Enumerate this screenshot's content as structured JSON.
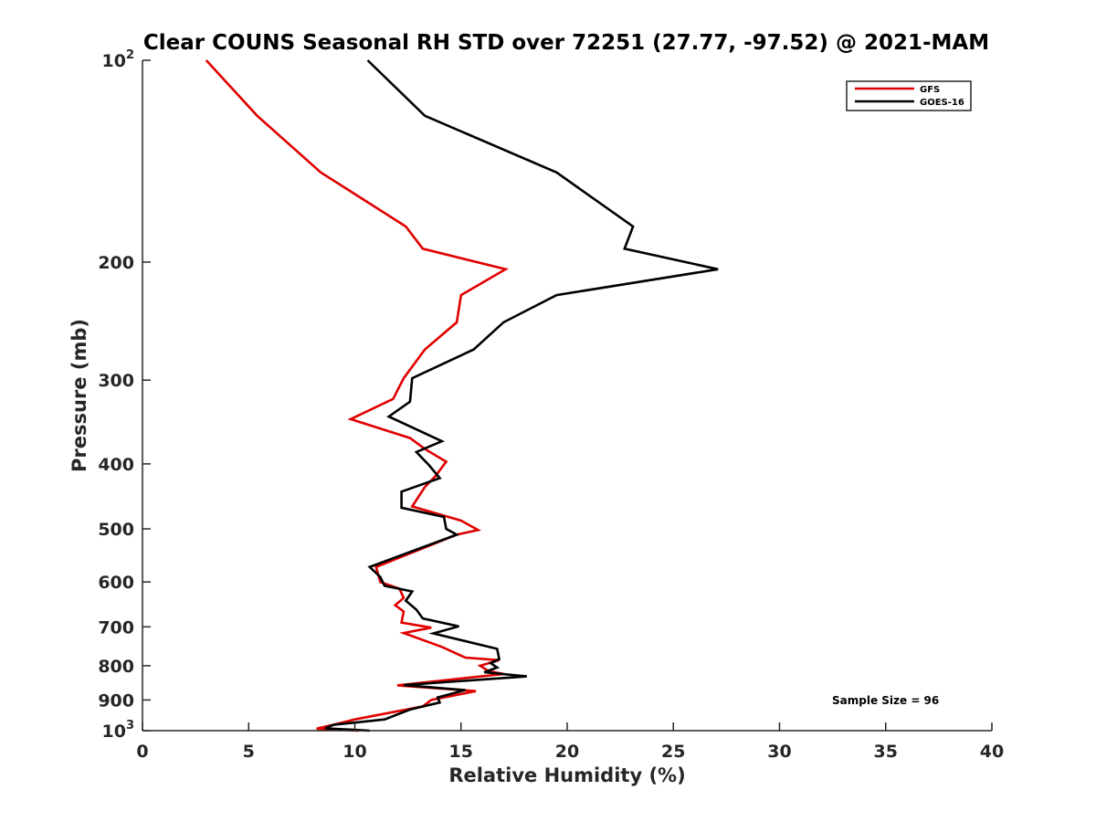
{
  "chart_data": {
    "type": "line",
    "title": "Clear COUNS Seasonal RH STD over 72251 (27.77, -97.52) @ 2021-MAM",
    "xlabel": "Relative Humidity (%)",
    "ylabel": "Pressure (mb)",
    "xlim": [
      0,
      40
    ],
    "ylim": [
      100,
      1000
    ],
    "yscale": "log",
    "xticks": [
      0,
      5,
      10,
      15,
      20,
      25,
      30,
      35,
      40
    ],
    "yticks": [
      {
        "value": 100,
        "label": "10",
        "sup": "2"
      },
      {
        "value": 200,
        "label": "200",
        "sup": ""
      },
      {
        "value": 300,
        "label": "300",
        "sup": ""
      },
      {
        "value": 400,
        "label": "400",
        "sup": ""
      },
      {
        "value": 500,
        "label": "500",
        "sup": ""
      },
      {
        "value": 600,
        "label": "600",
        "sup": ""
      },
      {
        "value": 700,
        "label": "700",
        "sup": ""
      },
      {
        "value": 800,
        "label": "800",
        "sup": ""
      },
      {
        "value": 900,
        "label": "900",
        "sup": ""
      },
      {
        "value": 1000,
        "label": "10",
        "sup": "3"
      }
    ],
    "grid": false,
    "legend_position": "top-right",
    "annotation": "Sample Size = 96",
    "series": [
      {
        "name": "GFS",
        "color": "#e00000",
        "points": [
          [
            3.0,
            100
          ],
          [
            5.4,
            121
          ],
          [
            8.4,
            147
          ],
          [
            12.4,
            177
          ],
          [
            13.2,
            191
          ],
          [
            17.1,
            205
          ],
          [
            15.0,
            224
          ],
          [
            14.8,
            246
          ],
          [
            13.3,
            270
          ],
          [
            12.3,
            298
          ],
          [
            11.8,
            320
          ],
          [
            9.8,
            343
          ],
          [
            12.6,
            366
          ],
          [
            13.3,
            380
          ],
          [
            14.3,
            397
          ],
          [
            13.8,
            417
          ],
          [
            13.3,
            433
          ],
          [
            12.7,
            463
          ],
          [
            15.0,
            486
          ],
          [
            15.8,
            502
          ],
          [
            14.8,
            510
          ],
          [
            11.0,
            570
          ],
          [
            11.2,
            600
          ],
          [
            12.1,
            614
          ],
          [
            12.3,
            634
          ],
          [
            11.9,
            650
          ],
          [
            12.3,
            664
          ],
          [
            12.2,
            690
          ],
          [
            13.6,
            702
          ],
          [
            12.3,
            715
          ],
          [
            14.1,
            750
          ],
          [
            15.2,
            778
          ],
          [
            16.8,
            785
          ],
          [
            15.9,
            800
          ],
          [
            16.3,
            815
          ],
          [
            17.0,
            823
          ],
          [
            12.0,
            856
          ],
          [
            15.7,
            873
          ],
          [
            13.6,
            900
          ],
          [
            13.2,
            920
          ],
          [
            10.0,
            962
          ],
          [
            9.1,
            978
          ],
          [
            8.2,
            993
          ],
          [
            10.2,
            1000
          ]
        ]
      },
      {
        "name": "GOES-16",
        "color": "#000000",
        "points": [
          [
            10.6,
            100
          ],
          [
            13.3,
            121
          ],
          [
            19.5,
            147
          ],
          [
            23.1,
            177
          ],
          [
            22.7,
            191
          ],
          [
            27.1,
            205
          ],
          [
            19.5,
            224
          ],
          [
            17.0,
            246
          ],
          [
            15.6,
            270
          ],
          [
            12.7,
            298
          ],
          [
            12.6,
            323
          ],
          [
            11.6,
            340
          ],
          [
            14.1,
            370
          ],
          [
            12.9,
            384
          ],
          [
            13.5,
            402
          ],
          [
            14.0,
            420
          ],
          [
            12.2,
            440
          ],
          [
            12.2,
            465
          ],
          [
            14.2,
            480
          ],
          [
            14.3,
            500
          ],
          [
            14.8,
            510
          ],
          [
            10.7,
            570
          ],
          [
            11.2,
            590
          ],
          [
            11.4,
            608
          ],
          [
            12.7,
            620
          ],
          [
            12.4,
            640
          ],
          [
            12.9,
            660
          ],
          [
            13.2,
            680
          ],
          [
            14.9,
            699
          ],
          [
            13.7,
            716
          ],
          [
            16.7,
            755
          ],
          [
            16.8,
            782
          ],
          [
            16.4,
            793
          ],
          [
            16.7,
            805
          ],
          [
            16.1,
            818
          ],
          [
            18.1,
            830
          ],
          [
            12.3,
            855
          ],
          [
            15.2,
            870
          ],
          [
            13.9,
            892
          ],
          [
            14.0,
            908
          ],
          [
            12.6,
            930
          ],
          [
            11.4,
            962
          ],
          [
            9.0,
            980
          ],
          [
            8.6,
            992
          ],
          [
            10.7,
            1000
          ]
        ]
      }
    ]
  }
}
